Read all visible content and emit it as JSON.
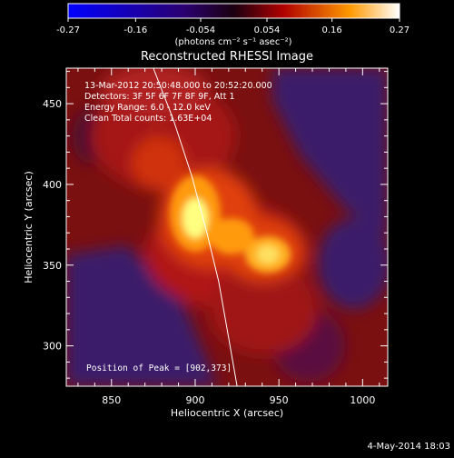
{
  "colorbar": {
    "ticks": [
      "-0.27",
      "-0.16",
      "-0.054",
      "0.054",
      "0.16",
      "0.27"
    ],
    "tick_values": [
      -0.27,
      -0.16,
      -0.054,
      0.054,
      0.16,
      0.27
    ],
    "range": [
      -0.27,
      0.27
    ],
    "unit_label": "(photons cm⁻² s⁻¹ asec⁻²)"
  },
  "plot": {
    "title": "Reconstructed RHESSI Image",
    "xlabel": "Heliocentric X (arcsec)",
    "ylabel": "Heliocentric Y (arcsec)",
    "x_ticks": [
      850,
      900,
      950,
      1000
    ],
    "y_ticks": [
      300,
      350,
      400,
      450
    ],
    "x_range": [
      823,
      1015
    ],
    "y_range": [
      275,
      472
    ],
    "info_lines": [
      "13-Mar-2012 20:50:48.000 to 20:52:20.000",
      "Detectors: 3F 5F 6F 7F 8F 9F, Att 1",
      "Energy Range: 6.0 - 12.0 keV",
      "Clean    Total counts: 1.63E+04"
    ],
    "peak_label": "Position of Peak = [902,373]",
    "peak": [
      902,
      373
    ],
    "limb_points": [
      [
        875,
        472
      ],
      [
        887,
        440
      ],
      [
        898,
        405
      ],
      [
        907,
        370
      ],
      [
        914,
        340
      ],
      [
        920,
        305
      ],
      [
        925,
        275
      ]
    ]
  },
  "footer": {
    "date": "4-May-2014 18:03"
  },
  "colors": {
    "background": "#000000",
    "negative": "#3a1a7a",
    "positive_low": "#b01010",
    "positive_high": "#ffffa0"
  }
}
